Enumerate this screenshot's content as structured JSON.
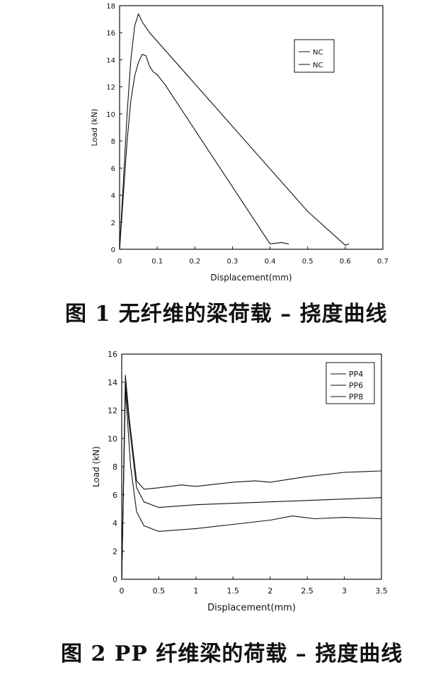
{
  "chart_data": [
    {
      "type": "line",
      "xlabel": "Displacement(mm)",
      "ylabel": "Load (kN)",
      "xlim": [
        0,
        0.7
      ],
      "ylim": [
        0,
        18
      ],
      "xticks": [
        0,
        0.1,
        0.2,
        0.3,
        0.4,
        0.5,
        0.6,
        0.7
      ],
      "yticks": [
        0,
        2,
        4,
        6,
        8,
        10,
        12,
        14,
        16,
        18
      ],
      "legend_position": "top-right",
      "grid": false,
      "series": [
        {
          "name": "NC",
          "x": [
            0,
            0.01,
            0.02,
            0.03,
            0.04,
            0.05,
            0.06,
            0.08,
            0.5,
            0.6,
            0.61
          ],
          "y": [
            0,
            5,
            10,
            14,
            16.5,
            17.4,
            16.8,
            16.0,
            2.8,
            0.3,
            0.4
          ]
        },
        {
          "name": "NC",
          "x": [
            0,
            0.01,
            0.02,
            0.03,
            0.04,
            0.05,
            0.06,
            0.07,
            0.08,
            0.09,
            0.1,
            0.12,
            0.4,
            0.43,
            0.45
          ],
          "y": [
            0,
            4,
            8,
            11,
            12.8,
            13.8,
            14.4,
            14.3,
            13.5,
            13.1,
            12.9,
            12.2,
            0.4,
            0.5,
            0.4
          ]
        }
      ]
    },
    {
      "type": "line",
      "xlabel": "Displacement(mm)",
      "ylabel": "Load (kN)",
      "xlim": [
        0,
        3.5
      ],
      "ylim": [
        0,
        16
      ],
      "xticks": [
        0,
        0.5,
        1,
        1.5,
        2,
        2.5,
        3,
        3.5
      ],
      "yticks": [
        0,
        2,
        4,
        6,
        8,
        10,
        12,
        14,
        16
      ],
      "legend_position": "top-right",
      "grid": false,
      "series": [
        {
          "name": "PP4",
          "x": [
            0,
            0.05,
            0.12,
            0.2,
            0.3,
            0.5,
            1.0,
            1.5,
            2.0,
            2.3,
            2.6,
            3.0,
            3.5
          ],
          "y": [
            0,
            13.5,
            8.0,
            4.8,
            3.8,
            3.4,
            3.6,
            3.9,
            4.2,
            4.5,
            4.3,
            4.4,
            4.3
          ]
        },
        {
          "name": "PP6",
          "x": [
            0,
            0.05,
            0.1,
            0.2,
            0.3,
            0.5,
            1.0,
            1.5,
            2.0,
            2.5,
            3.0,
            3.5
          ],
          "y": [
            0,
            14.0,
            11.0,
            6.5,
            5.5,
            5.1,
            5.3,
            5.4,
            5.5,
            5.6,
            5.7,
            5.8
          ]
        },
        {
          "name": "PP8",
          "x": [
            0,
            0.05,
            0.1,
            0.2,
            0.3,
            0.5,
            0.8,
            1.0,
            1.5,
            1.8,
            2.0,
            2.5,
            3.0,
            3.5
          ],
          "y": [
            0,
            14.5,
            11.5,
            7.0,
            6.4,
            6.5,
            6.7,
            6.6,
            6.9,
            7.0,
            6.9,
            7.3,
            7.6,
            7.7
          ]
        }
      ]
    }
  ],
  "captions": {
    "fig1": "图 1    无纤维的梁荷载 – 挠度曲线",
    "fig2": "图 2    PP 纤维梁的荷载 – 挠度曲线"
  },
  "colors": {
    "line": "#111111",
    "background": "#ffffff"
  }
}
